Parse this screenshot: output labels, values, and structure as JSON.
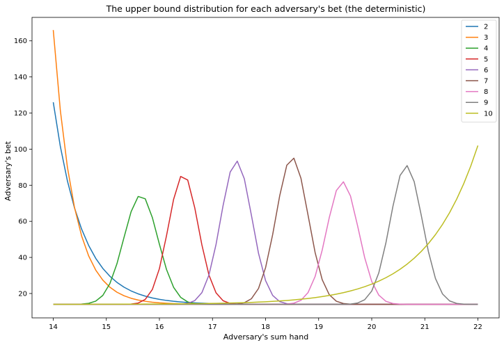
{
  "chart_data": {
    "type": "line",
    "title": "The upper bound distribution for each adversary's bet (the deterministic)",
    "xlabel": "Adversary's sum hand",
    "ylabel": "Adversary's bet",
    "xlim": [
      13.6,
      22.4
    ],
    "ylim": [
      6.5,
      173
    ],
    "xticks": [
      14,
      15,
      16,
      17,
      18,
      19,
      20,
      21,
      22
    ],
    "yticks": [
      20,
      40,
      60,
      80,
      100,
      120,
      140,
      160
    ],
    "grid": false,
    "legend_position": "top-right",
    "baseline": 14,
    "series": [
      {
        "name": "2",
        "color": "#1f77b4",
        "kind": "decay",
        "start": 126,
        "rate": 1.85
      },
      {
        "name": "3",
        "color": "#ff7f0e",
        "kind": "decay",
        "start": 166,
        "rate": 2.6
      },
      {
        "name": "4",
        "color": "#2ca02c",
        "kind": "peak",
        "center": 15.65,
        "peak": 74.5,
        "width": 0.32
      },
      {
        "name": "5",
        "color": "#d62728",
        "kind": "peak",
        "center": 16.45,
        "peak": 86,
        "width": 0.28
      },
      {
        "name": "6",
        "color": "#9467bd",
        "kind": "peak",
        "center": 17.45,
        "peak": 93.5,
        "width": 0.29
      },
      {
        "name": "7",
        "color": "#8c564b",
        "kind": "peak",
        "center": 18.5,
        "peak": 95.5,
        "width": 0.3
      },
      {
        "name": "8",
        "color": "#e377c2",
        "kind": "peak",
        "center": 19.45,
        "peak": 82,
        "width": 0.3
      },
      {
        "name": "9",
        "color": "#7f7f7f",
        "kind": "peak",
        "center": 20.65,
        "peak": 91,
        "width": 0.3
      },
      {
        "name": "10",
        "color": "#bcbd22",
        "kind": "grow",
        "end": 102,
        "rate": 1.03
      }
    ]
  }
}
